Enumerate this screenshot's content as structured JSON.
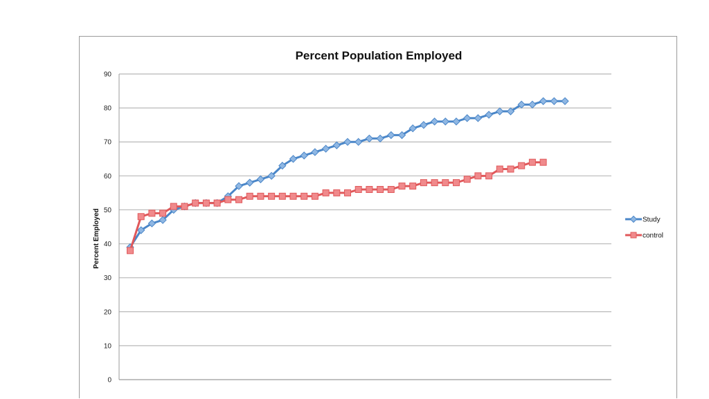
{
  "chart_data": {
    "type": "line",
    "title": "Percent Population Employed",
    "xlabel": "",
    "ylabel": "Percent Employed",
    "ylim": [
      0,
      90
    ],
    "yticks": [
      0,
      10,
      20,
      30,
      40,
      50,
      60,
      70,
      80,
      90
    ],
    "grid": true,
    "legend_position": "right",
    "series": [
      {
        "name": "Study",
        "color": "#4a86c8",
        "marker": "diamond",
        "values": [
          39,
          44,
          46,
          47,
          50,
          51,
          52,
          52,
          52,
          54,
          57,
          58,
          59,
          60,
          63,
          65,
          66,
          67,
          68,
          69,
          70,
          70,
          71,
          71,
          72,
          72,
          74,
          75,
          76,
          76,
          76,
          77,
          77,
          78,
          79,
          79,
          81,
          81,
          82,
          82,
          82
        ]
      },
      {
        "name": "control",
        "color": "#e0585a",
        "marker": "square",
        "values": [
          38,
          48,
          49,
          49,
          51,
          51,
          52,
          52,
          52,
          53,
          53,
          54,
          54,
          54,
          54,
          54,
          54,
          54,
          55,
          55,
          55,
          56,
          56,
          56,
          56,
          57,
          57,
          58,
          58,
          58,
          58,
          59,
          60,
          60,
          62,
          62,
          63,
          64,
          64
        ]
      }
    ]
  }
}
